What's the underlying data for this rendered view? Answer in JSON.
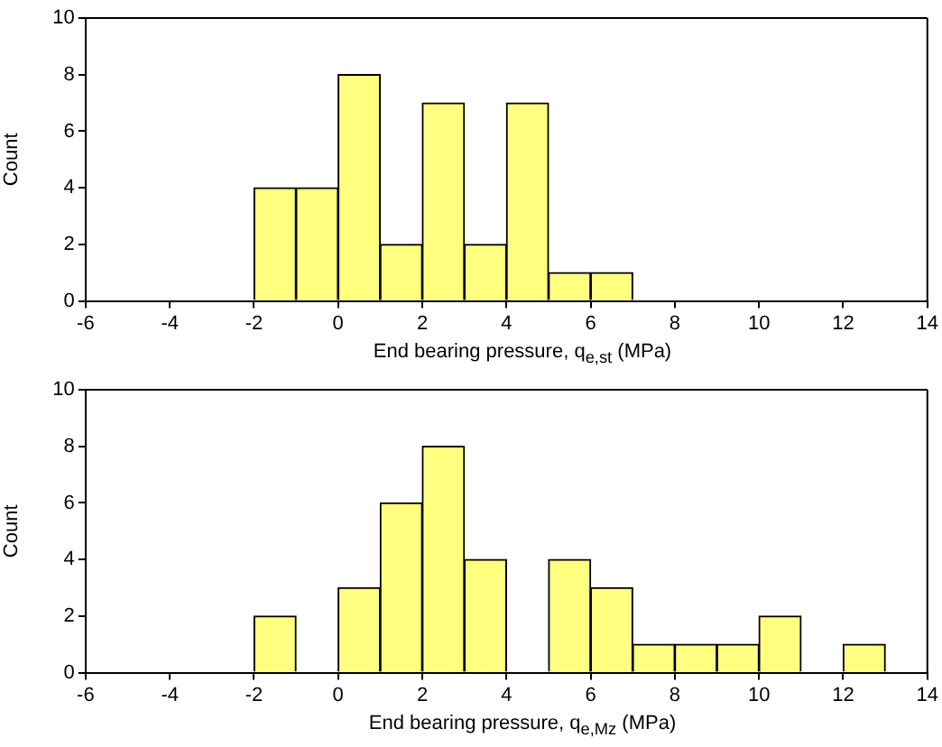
{
  "chart_data": [
    {
      "type": "histogram",
      "xlabel": "End bearing pressure, q$_{e,st}$ (MPa)",
      "ylabel": "Count",
      "bins": [
        -2,
        -1,
        0,
        1,
        2,
        3,
        4,
        5,
        6,
        7
      ],
      "values": [
        4,
        4,
        8,
        2,
        7,
        2,
        7,
        1,
        1
      ],
      "color": "#ffff80",
      "xlim": [
        -6,
        14
      ],
      "xticks": [
        -6,
        -4,
        -2,
        0,
        2,
        4,
        6,
        8,
        10,
        12,
        14
      ],
      "ylim": [
        0,
        10
      ],
      "yticks": [
        0,
        2,
        4,
        6,
        8,
        10
      ],
      "grid": false,
      "legend": false
    },
    {
      "type": "histogram",
      "xlabel": "End bearing pressure, q$_{e,Mz}$ (MPa)",
      "ylabel": "Count",
      "bins": [
        -2,
        -1,
        0,
        1,
        2,
        3,
        4,
        5,
        6,
        7,
        8,
        9,
        10,
        11,
        12,
        13
      ],
      "values": [
        2,
        0,
        3,
        6,
        8,
        4,
        0,
        4,
        3,
        1,
        1,
        1,
        2,
        0,
        1
      ],
      "color": "#ffff80",
      "xlim": [
        -6,
        14
      ],
      "xticks": [
        -6,
        -4,
        -2,
        0,
        2,
        4,
        6,
        8,
        10,
        12,
        14
      ],
      "ylim": [
        0,
        10
      ],
      "yticks": [
        0,
        2,
        4,
        6,
        8,
        10
      ],
      "grid": false,
      "legend": false
    }
  ]
}
